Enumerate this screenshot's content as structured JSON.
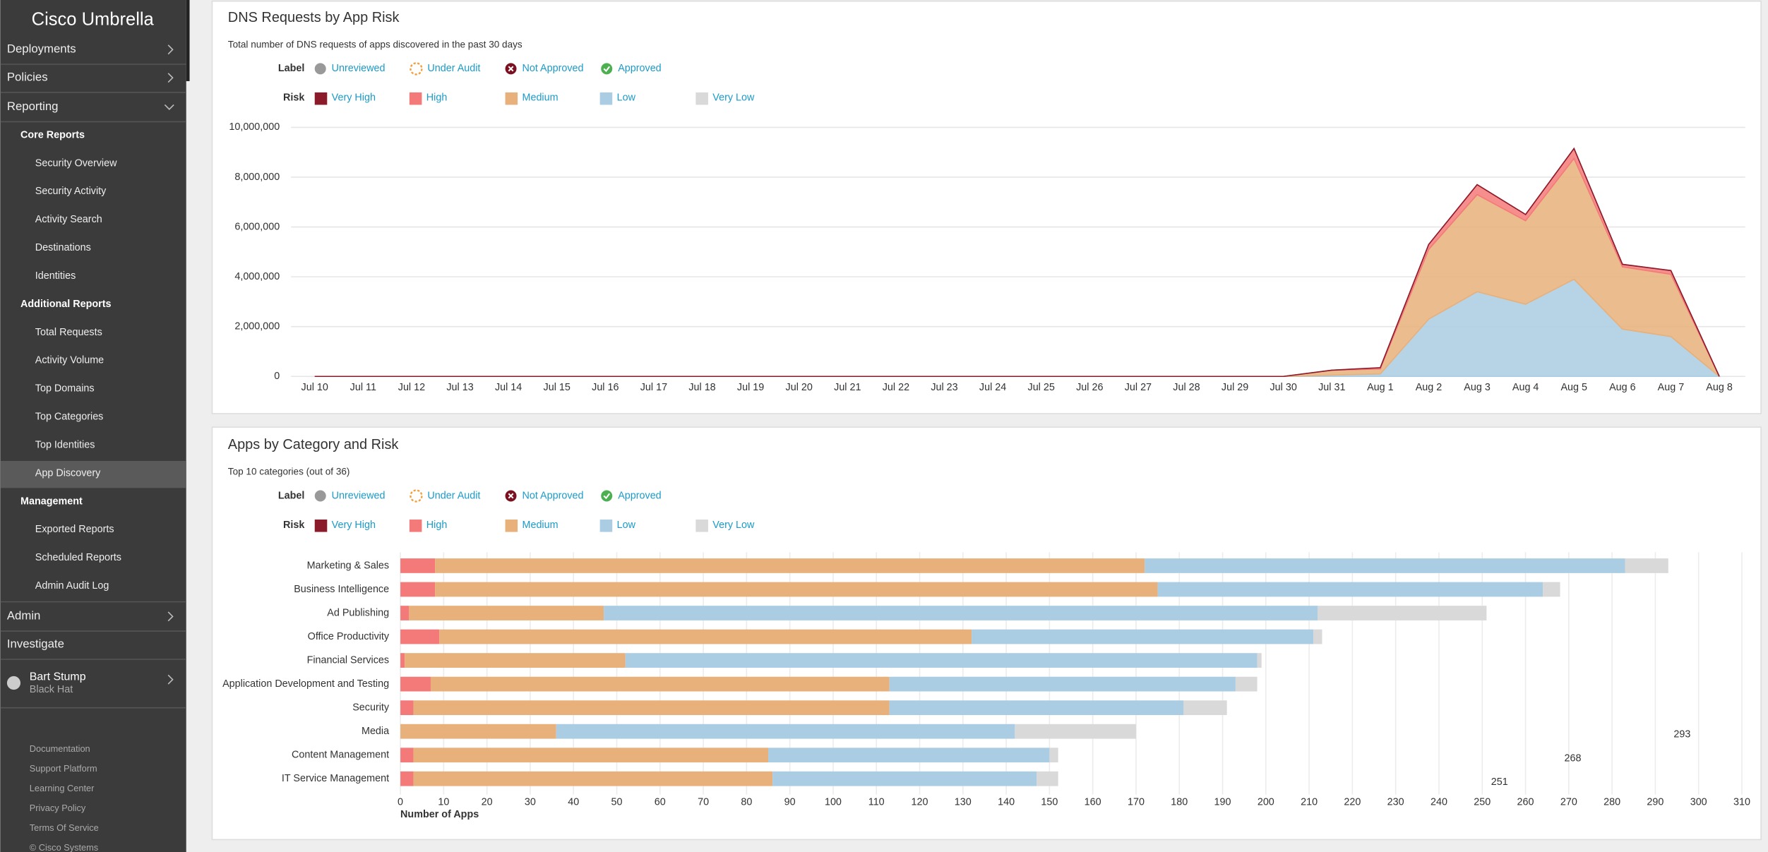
{
  "sidebar": {
    "brand": "Cisco Umbrella",
    "menu": [
      "Deployments",
      "Policies",
      "Reporting"
    ],
    "sections": [
      {
        "title": "Core Reports",
        "items": [
          "Security Overview",
          "Security Activity",
          "Activity Search",
          "Destinations",
          "Identities"
        ]
      },
      {
        "title": "Additional Reports",
        "items": [
          "Total Requests",
          "Activity Volume",
          "Top Domains",
          "Top Categories",
          "Top Identities",
          "App Discovery"
        ]
      },
      {
        "title": "Management",
        "items": [
          "Exported Reports",
          "Scheduled Reports",
          "Admin Audit Log"
        ]
      }
    ],
    "menu2": [
      "Admin",
      "Investigate"
    ],
    "user": {
      "name": "Bart Stump",
      "org": "Black Hat"
    },
    "footer": [
      "Documentation",
      "Support Platform",
      "Learning Center",
      "Privacy Policy",
      "Terms Of Service",
      "© Cisco Systems"
    ]
  },
  "legend": {
    "label_title": "Label",
    "labels": [
      "Unreviewed",
      "Under Audit",
      "Not Approved",
      "Approved"
    ],
    "risk_title": "Risk"
  },
  "chart_data": [
    {
      "type": "area",
      "title": "DNS Requests by App Risk",
      "subtitle": "Total number of DNS requests of apps discovered in the past 30 days",
      "x": [
        "Jul 10",
        "Jul 11",
        "Jul 12",
        "Jul 13",
        "Jul 14",
        "Jul 15",
        "Jul 16",
        "Jul 17",
        "Jul 18",
        "Jul 19",
        "Jul 20",
        "Jul 21",
        "Jul 22",
        "Jul 23",
        "Jul 24",
        "Jul 25",
        "Jul 26",
        "Jul 27",
        "Jul 28",
        "Jul 29",
        "Jul 30",
        "Jul 31",
        "Aug 1",
        "Aug 2",
        "Aug 3",
        "Aug 4",
        "Aug 5",
        "Aug 6",
        "Aug 7",
        "Aug 8"
      ],
      "series": [
        {
          "name": "Very High",
          "color": "#8b1a2b",
          "values": [
            0,
            0,
            0,
            0,
            0,
            0,
            0,
            0,
            0,
            0,
            0,
            0,
            0,
            0,
            0,
            0,
            0,
            0,
            0,
            0,
            0,
            0,
            0,
            0,
            0,
            0,
            0,
            0,
            0,
            0
          ]
        },
        {
          "name": "High",
          "color": "#f47a7a",
          "values": [
            0,
            0,
            0,
            0,
            0,
            0,
            0,
            0,
            0,
            0,
            0,
            0,
            0,
            0,
            0,
            0,
            0,
            0,
            0,
            0,
            0,
            0,
            50000,
            200000,
            400000,
            250000,
            400000,
            100000,
            150000,
            0
          ]
        },
        {
          "name": "Medium",
          "color": "#e8b07a",
          "values": [
            0,
            0,
            0,
            0,
            0,
            0,
            0,
            0,
            0,
            0,
            0,
            0,
            0,
            0,
            0,
            0,
            0,
            0,
            0,
            0,
            0,
            200000,
            200000,
            2800000,
            3900000,
            3350000,
            4850000,
            2500000,
            2500000,
            0
          ]
        },
        {
          "name": "Low",
          "color": "#aacde3",
          "values": [
            0,
            0,
            0,
            0,
            0,
            0,
            0,
            0,
            0,
            0,
            0,
            0,
            0,
            0,
            0,
            0,
            0,
            0,
            0,
            0,
            0,
            50000,
            100000,
            2300000,
            3400000,
            2900000,
            3900000,
            1900000,
            1600000,
            0
          ]
        },
        {
          "name": "Very Low",
          "color": "#d9d9d9",
          "values": [
            0,
            0,
            0,
            0,
            0,
            0,
            0,
            0,
            0,
            0,
            0,
            0,
            0,
            0,
            0,
            0,
            0,
            0,
            0,
            0,
            0,
            0,
            0,
            0,
            0,
            0,
            0,
            0,
            0,
            0
          ]
        }
      ],
      "ylim": [
        0,
        10000000
      ],
      "yticks": [
        0,
        {
          "value": 2000000,
          "label": "2,000,000"
        },
        {
          "value": 4000000,
          "label": "4,000,000"
        },
        {
          "value": 6000000,
          "label": "6,000,000"
        },
        {
          "value": 8000000,
          "label": "8,000,000"
        },
        {
          "value": 10000000,
          "label": "10,000,000"
        }
      ],
      "grid": true
    },
    {
      "type": "bar",
      "orientation": "horizontal",
      "title": "Apps by Category and Risk",
      "subtitle": "Top 10 categories (out of 36)",
      "categories": [
        "Marketing & Sales",
        "Business Intelligence",
        "Ad Publishing",
        "Office Productivity",
        "Financial Services",
        "Application Development and Testing",
        "Security",
        "Media",
        "Content Management",
        "IT Service Management"
      ],
      "series": [
        {
          "name": "Very High",
          "color": "#8b1a2b",
          "values": [
            0,
            0,
            0,
            0,
            0,
            0,
            0,
            0,
            0,
            0
          ]
        },
        {
          "name": "High",
          "color": "#f47a7a",
          "values": [
            8,
            8,
            2,
            9,
            1,
            7,
            3,
            0,
            3,
            3
          ]
        },
        {
          "name": "Medium",
          "color": "#e8b07a",
          "values": [
            164,
            167,
            45,
            123,
            51,
            106,
            110,
            36,
            82,
            83
          ]
        },
        {
          "name": "Low",
          "color": "#aacde3",
          "values": [
            111,
            89,
            165,
            79,
            146,
            80,
            68,
            106,
            65,
            61
          ]
        },
        {
          "name": "Very Low",
          "color": "#d9d9d9",
          "values": [
            10,
            4,
            39,
            2,
            1,
            5,
            10,
            28,
            2,
            5
          ]
        }
      ],
      "totals_shown": [
        293,
        268,
        251
      ],
      "xlim": [
        0,
        310
      ],
      "xticks": [
        0,
        10,
        20,
        30,
        40,
        50,
        60,
        70,
        80,
        90,
        100,
        110,
        120,
        130,
        140,
        150,
        160,
        170,
        180,
        190,
        200,
        210,
        220,
        230,
        240,
        250,
        260,
        270,
        280,
        290,
        300,
        310
      ],
      "xlabel": "Number of Apps",
      "grid": true
    }
  ]
}
